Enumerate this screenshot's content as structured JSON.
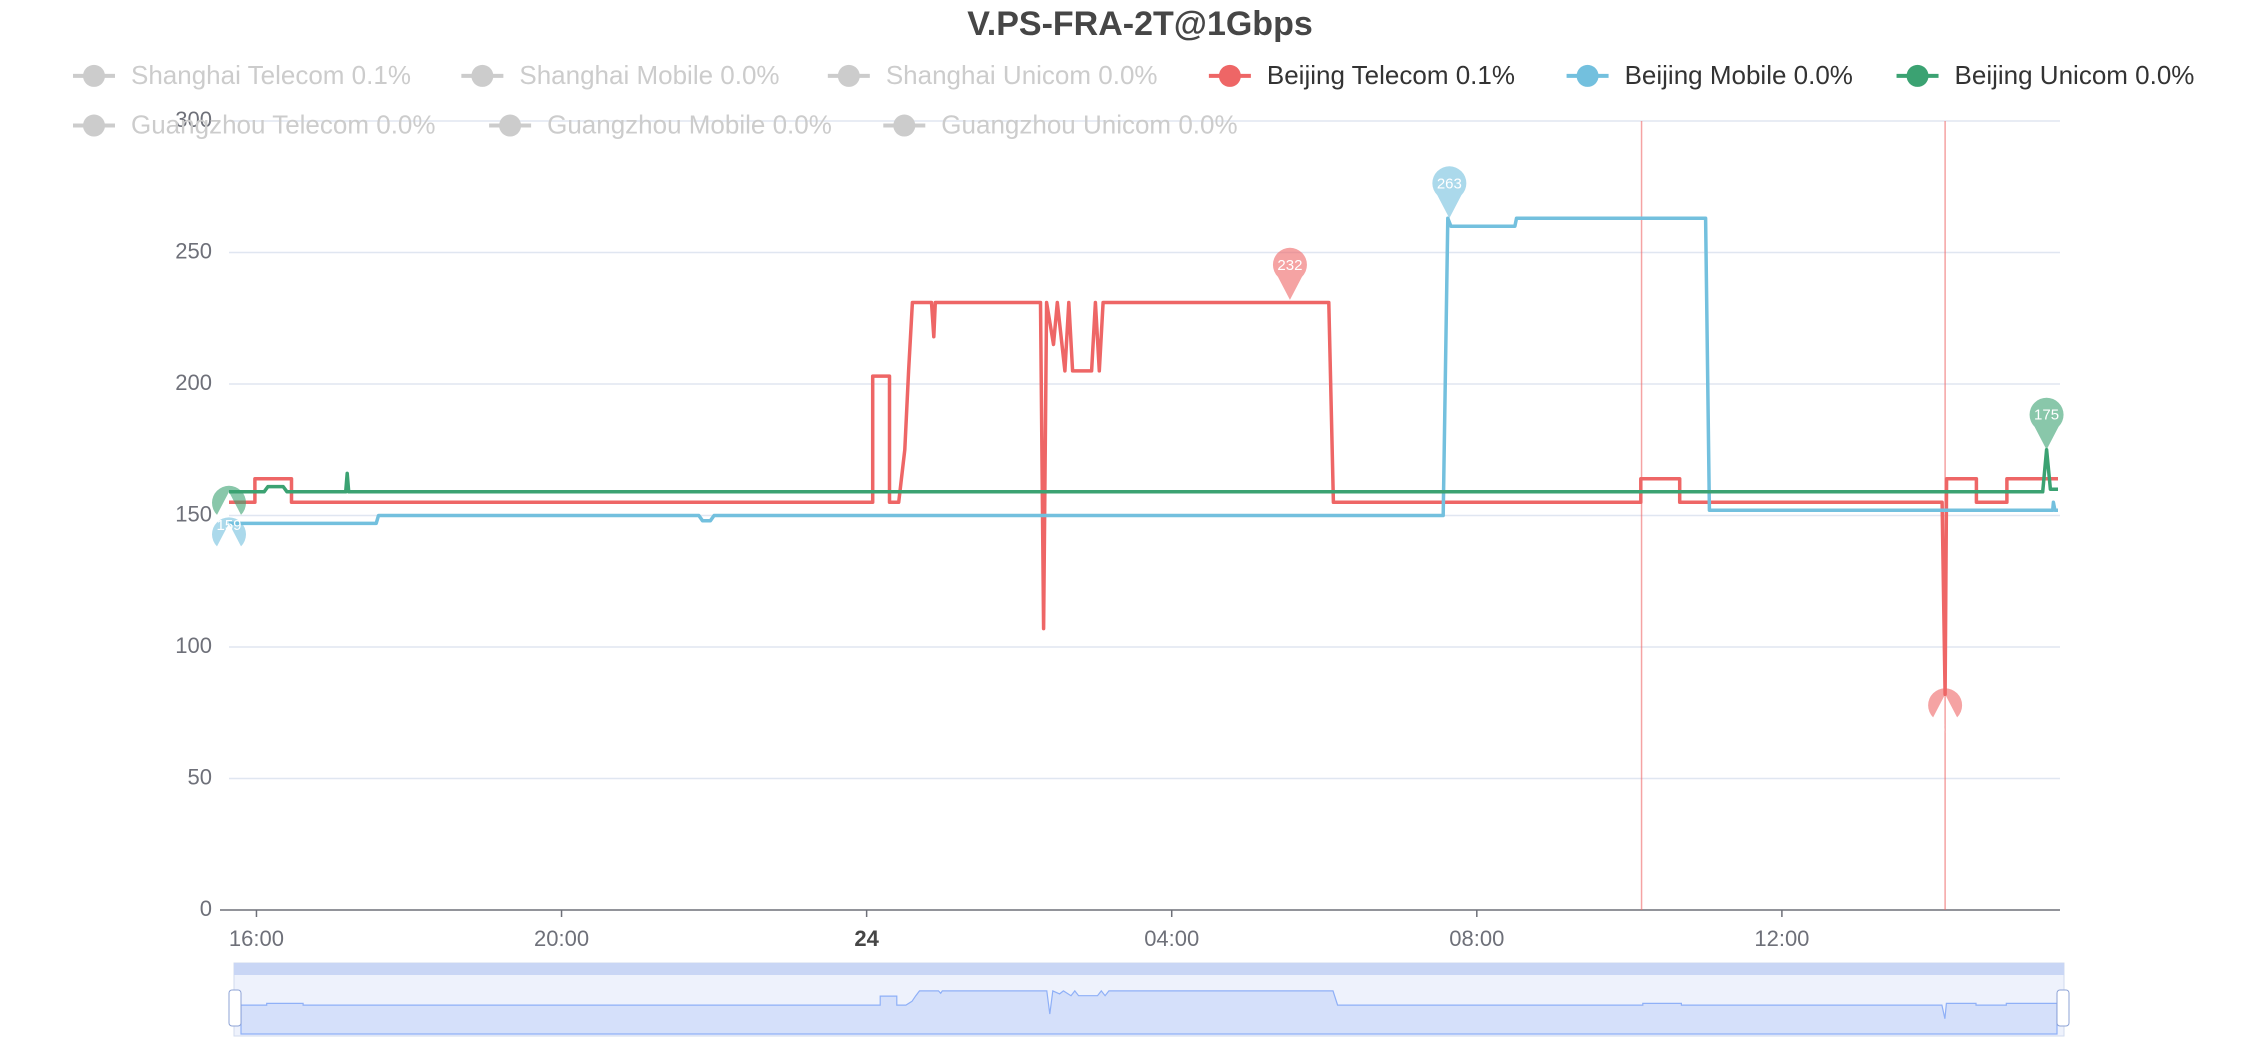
{
  "chart_data": {
    "type": "line",
    "title": "V.PS-FRA-2T@1Gbps",
    "xlim": [
      15.64,
      39.62
    ],
    "xticks": [
      {
        "value": 16,
        "label": "16:00"
      },
      {
        "value": 20,
        "label": "20:00"
      },
      {
        "value": 24,
        "label": "24"
      },
      {
        "value": 28,
        "label": "04:00"
      },
      {
        "value": 32,
        "label": "08:00"
      },
      {
        "value": 36,
        "label": "12:00"
      }
    ],
    "ylim": [
      0,
      300
    ],
    "yticks": [
      0,
      50,
      100,
      150,
      200,
      250,
      300
    ],
    "grid": true,
    "series": [
      {
        "name": "Shanghai Telecom 0.1%",
        "color": "#cccccc",
        "visible": false
      },
      {
        "name": "Shanghai Mobile 0.0%",
        "color": "#cccccc",
        "visible": false
      },
      {
        "name": "Shanghai Unicom 0.0%",
        "color": "#cccccc",
        "visible": false
      },
      {
        "name": "Beijing Telecom 0.1%",
        "color": "#ee6666",
        "visible": true,
        "x": [
          15.64,
          15.98,
          15.98,
          16.46,
          16.46,
          24.08,
          24.08,
          24.3,
          24.3,
          24.42,
          24.5,
          24.55,
          24.6,
          24.85,
          24.88,
          24.9,
          26.28,
          26.32,
          26.36,
          26.45,
          26.5,
          26.6,
          26.65,
          26.7,
          26.95,
          27.0,
          27.05,
          27.1,
          30.06,
          30.12,
          34.15,
          34.15,
          34.66,
          34.66,
          38.1,
          38.14,
          38.16,
          38.55,
          38.55,
          38.95,
          38.95,
          39.62
        ],
        "values": [
          155,
          155,
          164,
          164,
          155,
          155,
          203,
          203,
          155,
          155,
          175,
          205,
          231,
          231,
          218,
          231,
          231,
          107,
          231,
          215,
          231,
          205,
          231,
          205,
          205,
          231,
          205,
          231,
          231,
          155,
          155,
          164,
          164,
          155,
          155,
          82,
          164,
          164,
          155,
          155,
          164,
          164
        ],
        "max_point": {
          "x": 29.55,
          "value": 232
        },
        "min_point": {
          "x": 38.14,
          "value": 82
        },
        "mark_lines": [
          34.16,
          38.14
        ]
      },
      {
        "name": "Beijing Mobile 0.0%",
        "color": "#73c0de",
        "visible": true,
        "x": [
          15.64,
          17.57,
          17.6,
          21.8,
          21.85,
          21.95,
          22.0,
          31.56,
          31.62,
          31.66,
          32.5,
          32.52,
          35.0,
          35.05,
          39.55,
          39.56,
          39.58,
          39.62
        ],
        "values": [
          147,
          147,
          150,
          150,
          148,
          148,
          150,
          150,
          263,
          260,
          260,
          263,
          263,
          152,
          152,
          155,
          152,
          152
        ],
        "max_point": {
          "x": 31.64,
          "value": 263
        },
        "min_point": {
          "x": 15.64,
          "value": 147
        }
      },
      {
        "name": "Beijing Unicom 0.0%",
        "color": "#3ba272",
        "visible": true,
        "x": [
          15.64,
          16.1,
          16.15,
          16.35,
          16.4,
          17.17,
          17.19,
          17.21,
          39.42,
          39.47,
          39.52,
          39.62
        ],
        "values": [
          159,
          159,
          161,
          161,
          159,
          159,
          166,
          159,
          159,
          175,
          160,
          160
        ],
        "max_point": {
          "x": 39.47,
          "value": 175
        },
        "min_point": {
          "x": 15.64,
          "value": 159
        }
      },
      {
        "name": "Guangzhou Telecom 0.0%",
        "color": "#cccccc",
        "visible": false
      },
      {
        "name": "Guangzhou Mobile 0.0%",
        "color": "#cccccc",
        "visible": false
      },
      {
        "name": "Guangzhou Unicom 0.0%",
        "color": "#cccccc",
        "visible": false
      }
    ]
  }
}
